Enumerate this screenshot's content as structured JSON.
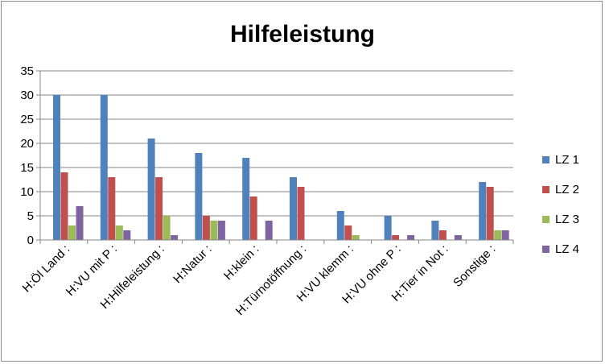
{
  "chart_data": {
    "type": "bar",
    "title": "Hilfeleistung",
    "xlabel": "",
    "ylabel": "",
    "ylim": [
      0,
      35
    ],
    "yticks": [
      0,
      5,
      10,
      15,
      20,
      25,
      30,
      35
    ],
    "grid": true,
    "legend_position": "right",
    "categories": [
      "H:Öl Land :",
      "H:VU mit P :",
      "H:Hilfeleistung :",
      "H:Natur :",
      "H:klein :",
      "H:Türnotöffnung :",
      "H:VU klemm :",
      "H:VU ohne P :",
      "H:Tier in Not :",
      "Sonstige :"
    ],
    "series": [
      {
        "name": "LZ 1",
        "color": "#4f81bd",
        "values": [
          30,
          30,
          21,
          18,
          17,
          13,
          6,
          5,
          4,
          12
        ]
      },
      {
        "name": "LZ 2",
        "color": "#c0504d",
        "values": [
          14,
          13,
          13,
          5,
          9,
          11,
          3,
          1,
          2,
          11
        ]
      },
      {
        "name": "LZ 3",
        "color": "#9bbb59",
        "values": [
          3,
          3,
          5,
          4,
          0,
          0,
          1,
          0,
          0,
          2
        ]
      },
      {
        "name": "LZ 4",
        "color": "#8064a2",
        "values": [
          7,
          2,
          1,
          4,
          4,
          0,
          0,
          1,
          1,
          2
        ]
      }
    ]
  }
}
